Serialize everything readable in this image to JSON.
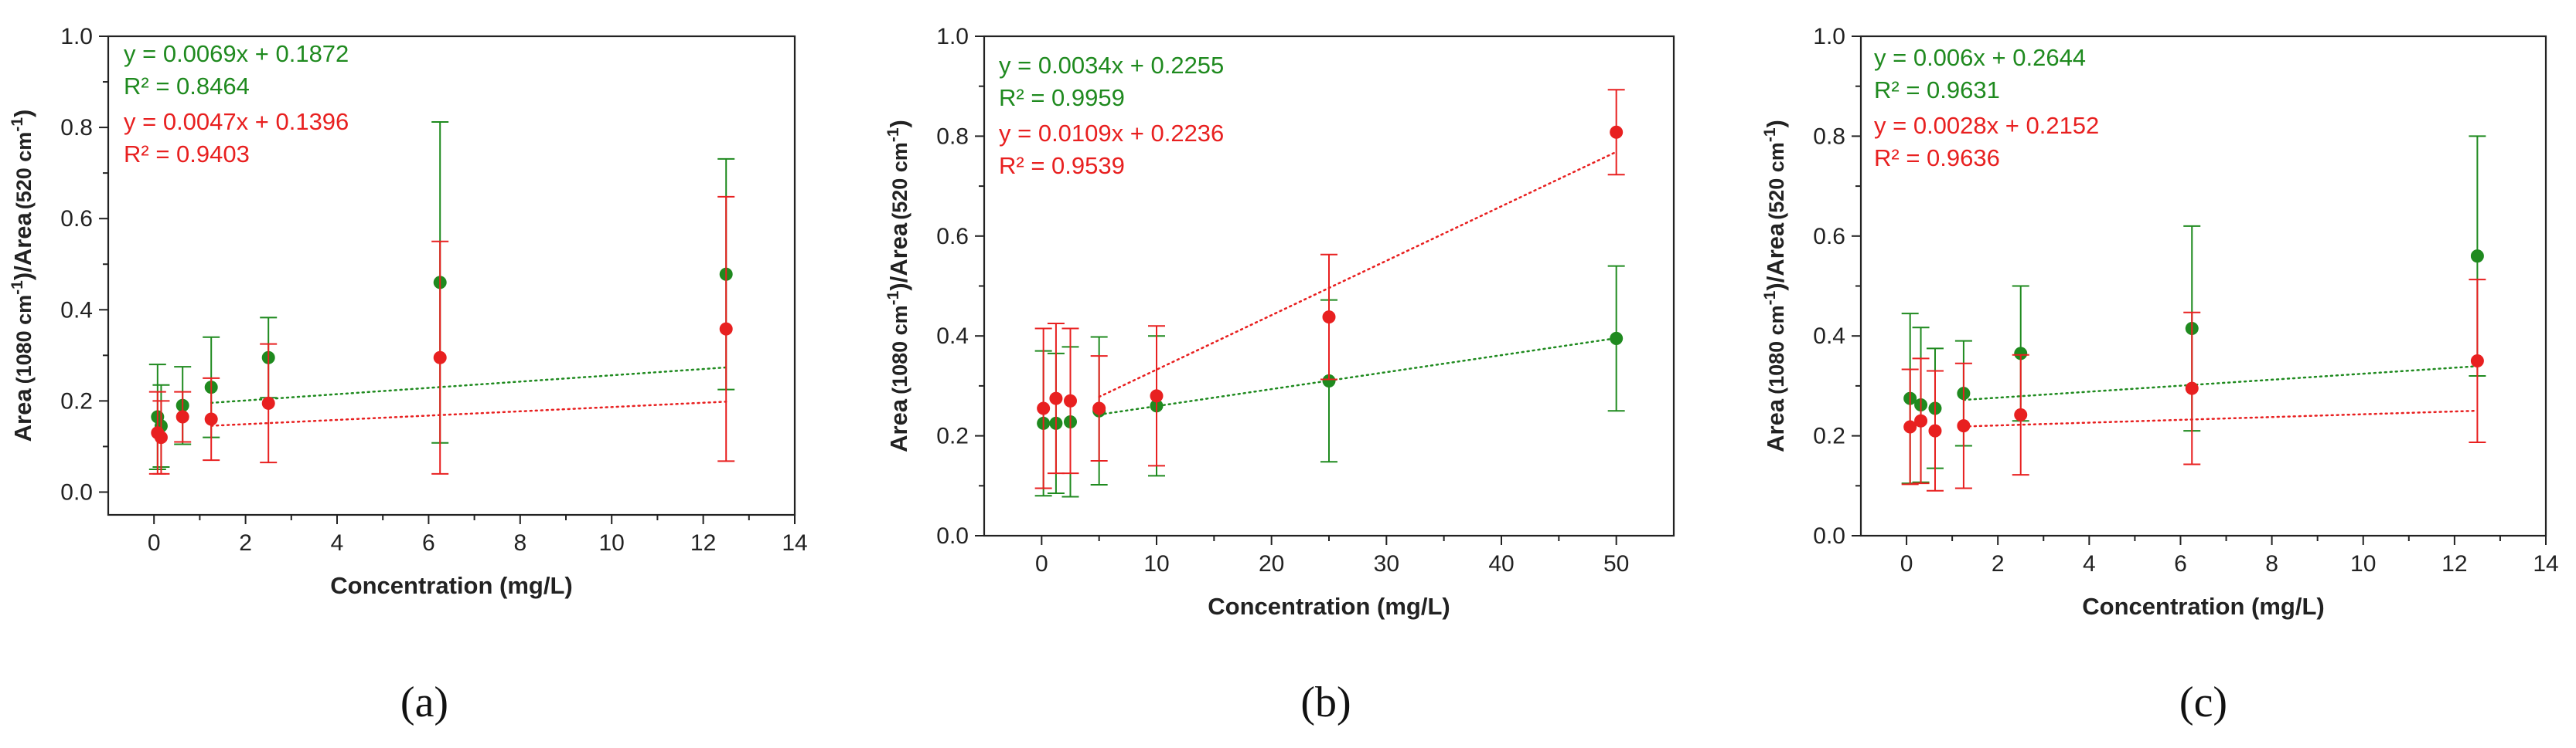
{
  "colors": {
    "green": "#1f8a1f",
    "red": "#e82020",
    "axis": "#222222"
  },
  "chart_data": [
    {
      "type": "scatter",
      "panel_label": "(a)",
      "xlabel": "Concentration (mg/L)",
      "ylabel": [
        "Area",
        "(1080 cm",
        "-1",
        ")/Area",
        "(520 cm",
        "-1",
        ")"
      ],
      "xlim": [
        -1,
        14
      ],
      "ylim": [
        -0.05,
        1.0
      ],
      "xticks": [
        0,
        2,
        4,
        6,
        8,
        10,
        12,
        14
      ],
      "yticks": [
        "0.0",
        "0.2",
        "0.4",
        "0.6",
        "0.8",
        "1.0"
      ],
      "series": [
        {
          "name": "green",
          "color": "green",
          "x": [
            0.078,
            0.156,
            0.625,
            1.25,
            2.5,
            6.25,
            12.5
          ],
          "y": [
            0.165,
            0.145,
            0.19,
            0.23,
            0.295,
            0.46,
            0.478
          ],
          "err": [
            0.115,
            0.09,
            0.085,
            0.11,
            0.088,
            0.352,
            0.253
          ],
          "fit": {
            "slope": 0.0069,
            "intercept": 0.1872,
            "from": 1.25,
            "to": 12.5
          },
          "equation": "y = 0.0069x + 0.1872",
          "r2": "R² = 0.8464"
        },
        {
          "name": "red",
          "color": "red",
          "x": [
            0.078,
            0.156,
            0.625,
            1.25,
            2.5,
            6.25,
            12.5
          ],
          "y": [
            0.13,
            0.12,
            0.165,
            0.16,
            0.195,
            0.295,
            0.358
          ],
          "err": [
            0.09,
            0.08,
            0.055,
            0.09,
            0.13,
            0.255,
            0.29
          ],
          "fit": {
            "slope": 0.0047,
            "intercept": 0.1396,
            "from": 1.25,
            "to": 12.5
          },
          "equation": "y = 0.0047x + 0.1396",
          "r2": "R² = 0.9403"
        }
      ]
    },
    {
      "type": "scatter",
      "panel_label": "(b)",
      "xlabel": "Concentration (mg/L)",
      "ylabel": [
        "Area",
        "(1080 cm",
        "-1",
        ")/Area",
        "(520 cm",
        "-1",
        ")"
      ],
      "xlim": [
        -5,
        55
      ],
      "ylim": [
        0.0,
        1.0
      ],
      "xticks": [
        0,
        10,
        20,
        30,
        40,
        50
      ],
      "yticks": [
        "0.0",
        "0.2",
        "0.4",
        "0.6",
        "0.8",
        "1.0"
      ],
      "series": [
        {
          "name": "green",
          "color": "green",
          "x": [
            0.156,
            1.25,
            2.5,
            5,
            10,
            25,
            50
          ],
          "y": [
            0.225,
            0.225,
            0.228,
            0.25,
            0.26,
            0.31,
            0.395
          ],
          "err": [
            0.145,
            0.14,
            0.15,
            0.148,
            0.14,
            0.162,
            0.145
          ],
          "fit": {
            "slope": 0.0034,
            "intercept": 0.2255,
            "from": 5,
            "to": 50
          },
          "equation": "y = 0.0034x + 0.2255",
          "r2": "R² = 0.9959"
        },
        {
          "name": "red",
          "color": "red",
          "x": [
            0.156,
            1.25,
            2.5,
            5,
            10,
            25,
            50
          ],
          "y": [
            0.255,
            0.275,
            0.27,
            0.255,
            0.28,
            0.438,
            0.808
          ],
          "err": [
            0.16,
            0.15,
            0.145,
            0.105,
            0.14,
            0.125,
            0.085
          ],
          "fit": {
            "slope": 0.0109,
            "intercept": 0.2236,
            "from": 5,
            "to": 50
          },
          "equation": "y = 0.0109x + 0.2236",
          "r2": "R² = 0.9539"
        }
      ]
    },
    {
      "type": "scatter",
      "panel_label": "(c)",
      "xlabel": "Concentration (mg/L)",
      "ylabel": [
        "Area",
        "(1080 cm",
        "-1",
        ")/Area",
        "(520 cm",
        "-1",
        ")"
      ],
      "xlim": [
        -1,
        14
      ],
      "ylim": [
        0.0,
        1.0
      ],
      "xticks": [
        0,
        2,
        4,
        6,
        8,
        10,
        12,
        14
      ],
      "yticks": [
        "0.0",
        "0.2",
        "0.4",
        "0.6",
        "0.8",
        "1.0"
      ],
      "series": [
        {
          "name": "green",
          "color": "green",
          "x": [
            0.078,
            0.313,
            0.625,
            1.25,
            2.5,
            6.25,
            12.5
          ],
          "y": [
            0.275,
            0.262,
            0.255,
            0.285,
            0.365,
            0.415,
            0.56
          ],
          "err": [
            0.17,
            0.155,
            0.12,
            0.105,
            0.135,
            0.205,
            0.24
          ],
          "fit": {
            "slope": 0.006,
            "intercept": 0.2644,
            "from": 1.25,
            "to": 12.5
          },
          "equation": "y = 0.006x + 0.2644",
          "r2": "R² = 0.9631"
        },
        {
          "name": "red",
          "color": "red",
          "x": [
            0.078,
            0.313,
            0.625,
            1.25,
            2.5,
            6.25,
            12.5
          ],
          "y": [
            0.218,
            0.23,
            0.21,
            0.22,
            0.242,
            0.295,
            0.35
          ],
          "err": [
            0.115,
            0.125,
            0.12,
            0.125,
            0.12,
            0.152,
            0.163
          ],
          "fit": {
            "slope": 0.0028,
            "intercept": 0.2152,
            "from": 1.25,
            "to": 12.5
          },
          "equation": "y = 0.0028x + 0.2152",
          "r2": "R² = 0.9636"
        }
      ]
    }
  ]
}
